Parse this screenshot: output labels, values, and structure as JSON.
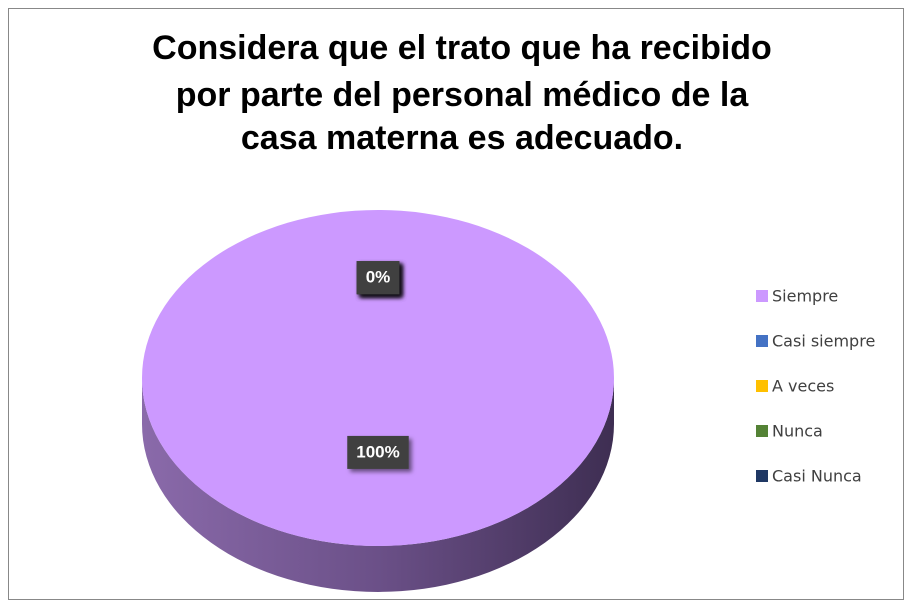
{
  "chart_data": {
    "type": "pie",
    "title": [
      "Considera que el trato que ha recibido",
      "por parte del personal médico de la",
      "casa materna es adecuado."
    ],
    "categories": [
      "Siempre",
      "Casi siempre",
      "A veces",
      "Nunca",
      "Casi Nunca"
    ],
    "values": [
      100,
      0,
      0,
      0,
      0
    ],
    "value_labels": [
      "100%",
      "0%",
      "0%",
      "0%",
      "0%"
    ],
    "colors": [
      "#cc99ff",
      "#4472c4",
      "#ffc000",
      "#548235",
      "#1f3864"
    ],
    "legend": "right"
  }
}
